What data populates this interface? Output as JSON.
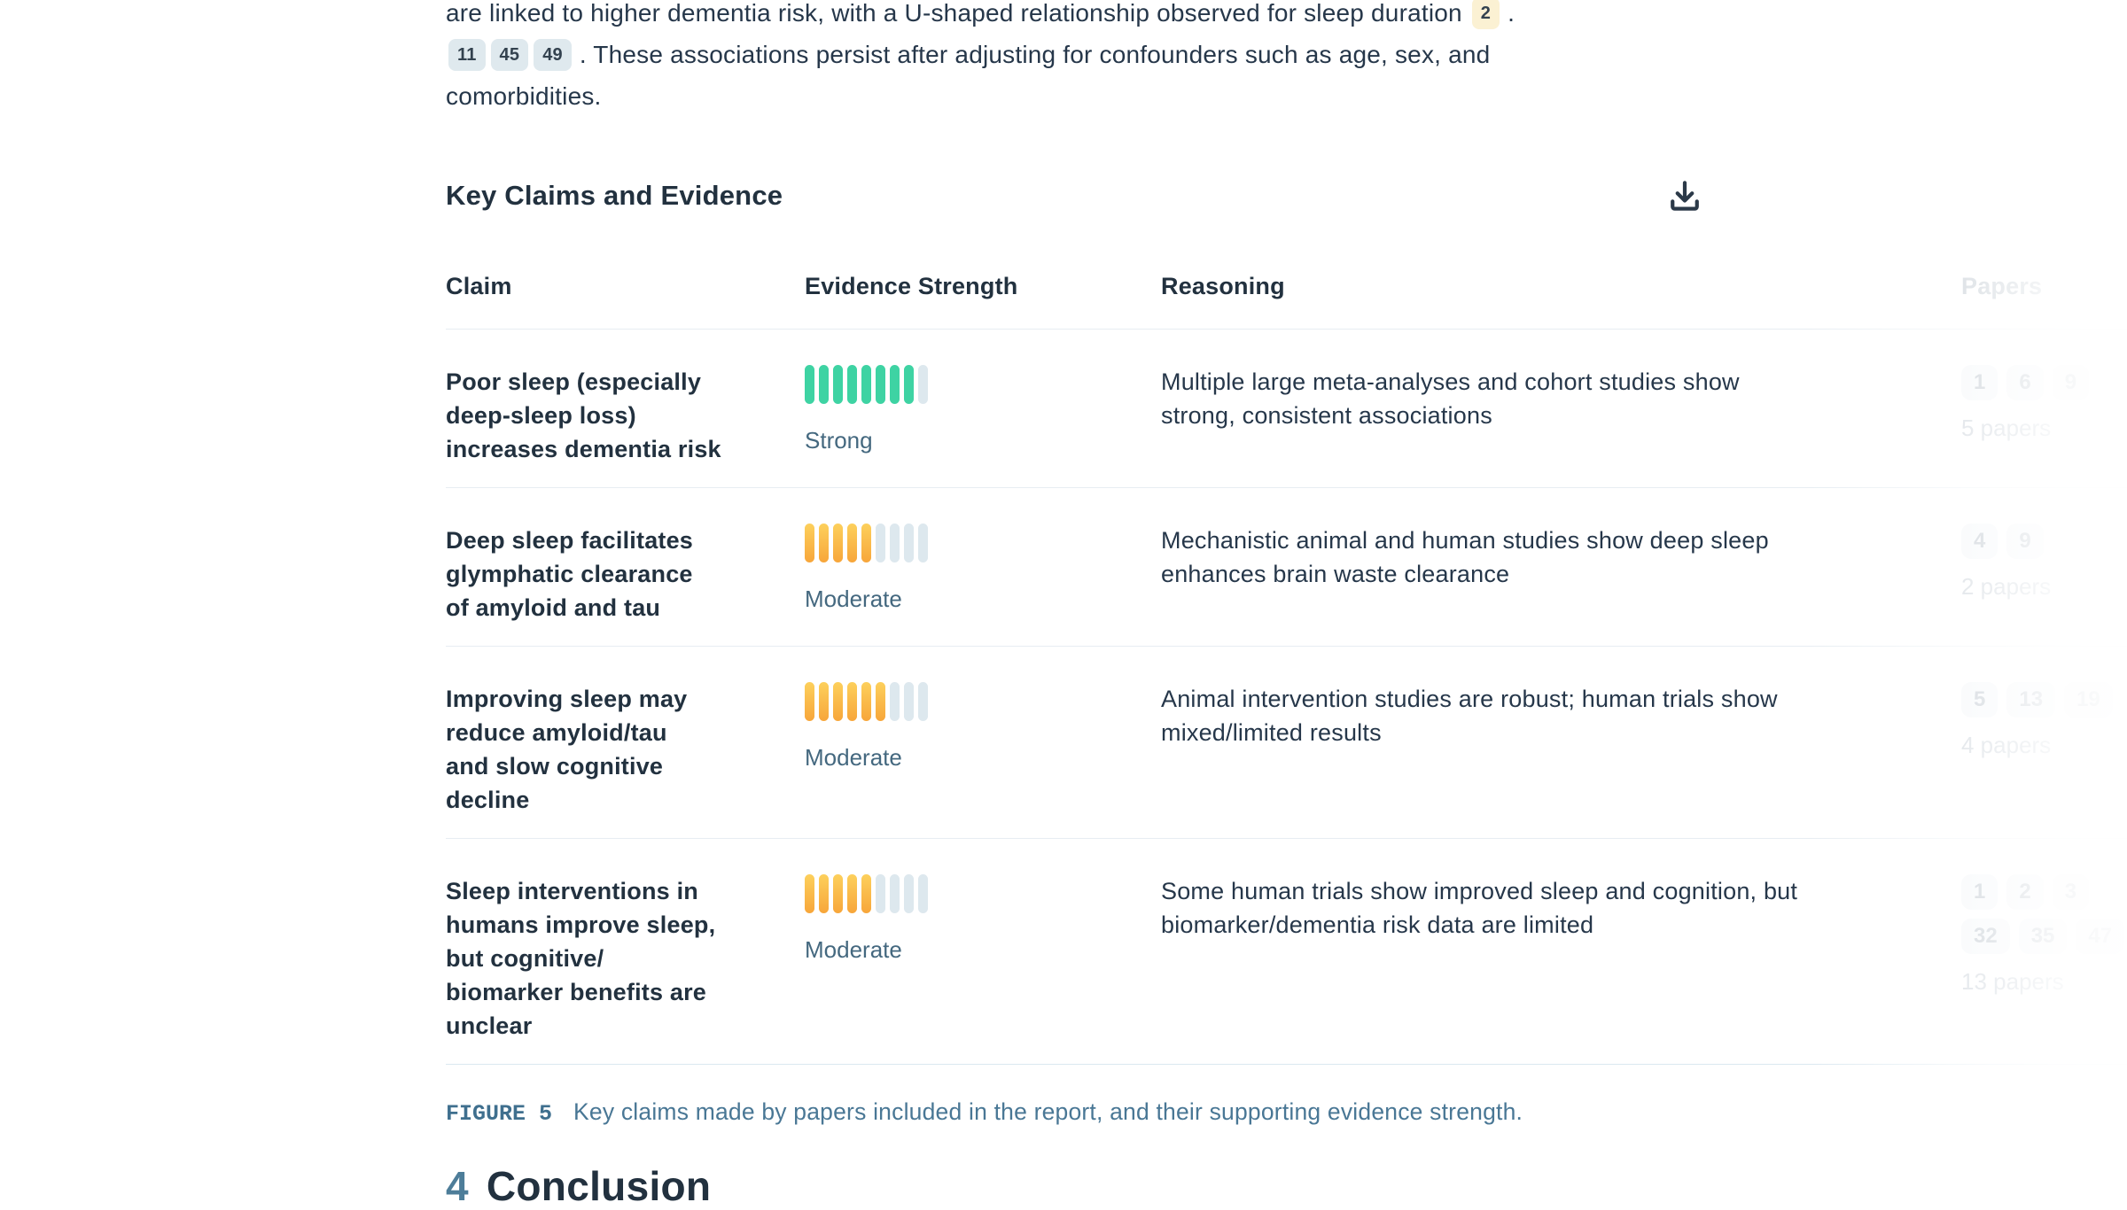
{
  "intro": {
    "line1_text": "are linked to higher dementia risk, with a U-shaped relationship observed for sleep duration",
    "line1_cite": "2",
    "line1_end": ".",
    "line2_cites": [
      "11",
      "45",
      "49"
    ],
    "line2_text": ". These associations persist after adjusting for confounders such as age, sex, and",
    "line3_text": "comorbidities."
  },
  "section": {
    "title": "Key Claims and Evidence",
    "download_icon": "download-icon"
  },
  "table": {
    "headers": [
      "Claim",
      "Evidence Strength",
      "Reasoning",
      "Papers"
    ],
    "rows": [
      {
        "claim": "Poor sleep (especially\ndeep-sleep loss)\nincreases dementia risk",
        "strength_label": "Strong",
        "strength_level": "strong",
        "bars_filled": 8,
        "bars_total": 9,
        "reasoning": "Multiple large meta-analyses and cohort studies show\nstrong, consistent associations",
        "paper_badges": [
          [
            "1",
            "6",
            "9"
          ]
        ],
        "paper_count": "5 papers"
      },
      {
        "claim": "Deep sleep facilitates\nglymphatic clearance\nof amyloid and tau",
        "strength_label": "Moderate",
        "strength_level": "moderate",
        "bars_filled": 5,
        "bars_total": 9,
        "reasoning": "Mechanistic animal and human studies show deep sleep\nenhances brain waste clearance",
        "paper_badges": [
          [
            "4",
            "9"
          ]
        ],
        "paper_count": "2 papers"
      },
      {
        "claim": "Improving sleep may\nreduce amyloid/tau\nand slow cognitive\ndecline",
        "strength_label": "Moderate",
        "strength_level": "moderate",
        "bars_filled": 6,
        "bars_total": 9,
        "reasoning": "Animal intervention studies are robust; human trials show\nmixed/limited results",
        "paper_badges": [
          [
            "5",
            "13",
            "19"
          ]
        ],
        "paper_count": "4 papers"
      },
      {
        "claim": "Sleep interventions in\nhumans improve sleep,\nbut cognitive/\nbiomarker benefits are\nunclear",
        "strength_label": "Moderate",
        "strength_level": "moderate",
        "bars_filled": 5,
        "bars_total": 9,
        "reasoning": "Some human trials show improved sleep and cognition, but\nbiomarker/dementia risk data are limited",
        "paper_badges": [
          [
            "1",
            "2",
            "3"
          ],
          [
            "32",
            "35",
            "47"
          ]
        ],
        "paper_count": "13 papers"
      }
    ]
  },
  "caption": {
    "label": "FIGURE 5",
    "text": "Key claims made by papers included in the report, and their supporting evidence strength."
  },
  "conclusion": {
    "number": "4",
    "title": "Conclusion"
  },
  "colors": {
    "strength_strong": "#3ed3a3",
    "strength_moderate_top": "#fdd05c",
    "strength_moderate_bottom": "#f7a63a",
    "bar_empty": "#dde8ee",
    "citation_highlight_bg": "#fbf1d3",
    "citation_bg": "#dfe9ee",
    "strength_label_text": "#44687f",
    "caption_text": "#497795"
  }
}
